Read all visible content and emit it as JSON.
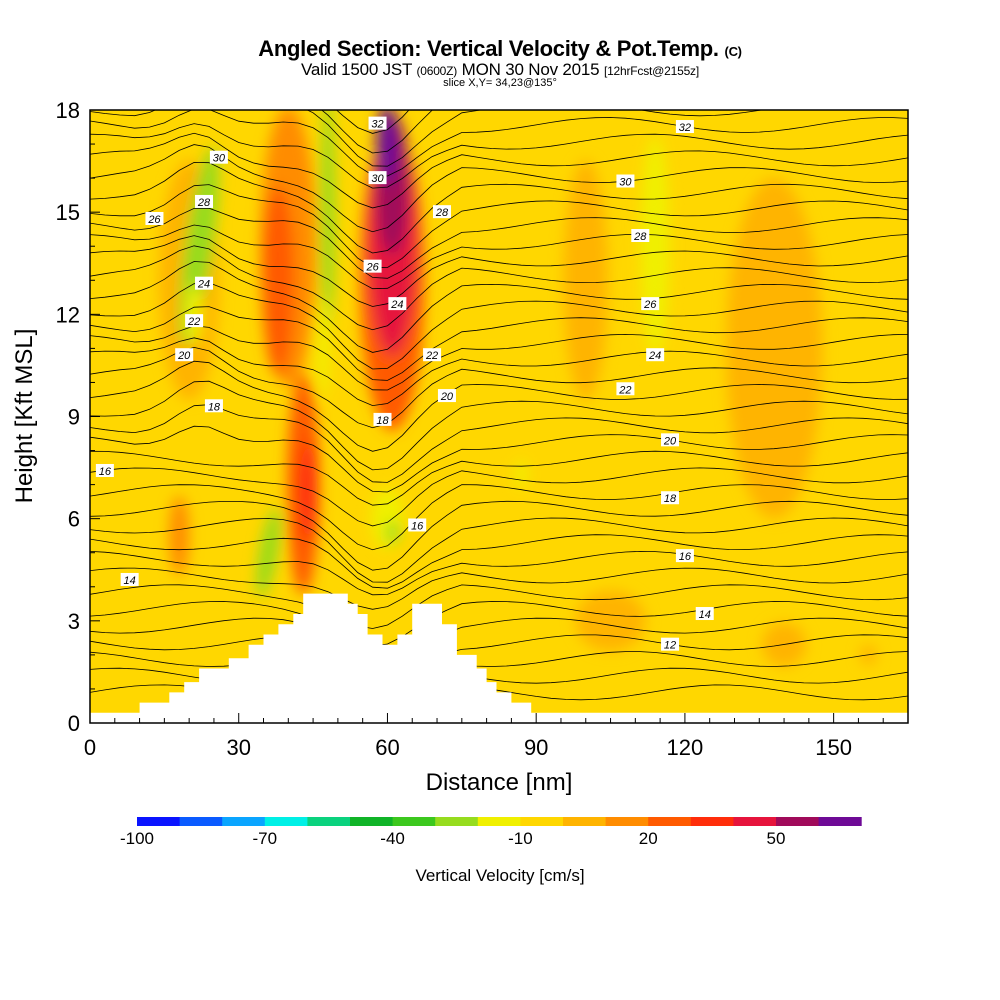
{
  "header": {
    "title_main": "Angled Section: Vertical Velocity & Pot.Temp.",
    "title_units": "(C)",
    "valid_a": "Valid 1500 JST",
    "valid_z": "(0600Z)",
    "valid_b": "MON 30 Nov 2015",
    "fcst": "[12hrFcst@2155z]",
    "slice": "slice X,Y= 34,23@135°"
  },
  "chart_data": {
    "type": "heatmap",
    "xlabel": "Distance [nm]",
    "ylabel": "Height [Kft MSL]",
    "xlim": [
      0,
      165
    ],
    "ylim": [
      0,
      18
    ],
    "xticks": [
      0,
      30,
      60,
      90,
      120,
      150
    ],
    "yticks": [
      0,
      3,
      6,
      9,
      12,
      15,
      18
    ],
    "terrain": [
      [
        0,
        0.3
      ],
      [
        10,
        0.3
      ],
      [
        10,
        0.6
      ],
      [
        16,
        0.6
      ],
      [
        16,
        0.9
      ],
      [
        19,
        0.9
      ],
      [
        19,
        1.2
      ],
      [
        22,
        1.2
      ],
      [
        22,
        1.6
      ],
      [
        28,
        1.6
      ],
      [
        28,
        1.9
      ],
      [
        32,
        1.9
      ],
      [
        32,
        2.3
      ],
      [
        35,
        2.3
      ],
      [
        35,
        2.6
      ],
      [
        38,
        2.6
      ],
      [
        38,
        2.9
      ],
      [
        41,
        2.9
      ],
      [
        41,
        3.2
      ],
      [
        43,
        3.2
      ],
      [
        43,
        3.8
      ],
      [
        52,
        3.8
      ],
      [
        52,
        3.5
      ],
      [
        54,
        3.5
      ],
      [
        54,
        3.2
      ],
      [
        56,
        3.2
      ],
      [
        56,
        2.6
      ],
      [
        59,
        2.6
      ],
      [
        59,
        2.3
      ],
      [
        62,
        2.3
      ],
      [
        62,
        2.6
      ],
      [
        65,
        2.6
      ],
      [
        65,
        3.5
      ],
      [
        71,
        3.5
      ],
      [
        71,
        2.9
      ],
      [
        74,
        2.9
      ],
      [
        74,
        2.0
      ],
      [
        78,
        2.0
      ],
      [
        78,
        1.6
      ],
      [
        80,
        1.6
      ],
      [
        80,
        1.2
      ],
      [
        82,
        1.2
      ],
      [
        82,
        0.9
      ],
      [
        85,
        0.9
      ],
      [
        85,
        0.6
      ],
      [
        89,
        0.6
      ],
      [
        89,
        0.3
      ],
      [
        165,
        0.3
      ]
    ],
    "theta_labels": [
      {
        "v": "32",
        "x": 58,
        "y": 17.6
      },
      {
        "v": "30",
        "x": 26,
        "y": 16.6
      },
      {
        "v": "30",
        "x": 58,
        "y": 16.0
      },
      {
        "v": "28",
        "x": 23,
        "y": 15.3
      },
      {
        "v": "26",
        "x": 13,
        "y": 14.8
      },
      {
        "v": "28",
        "x": 71,
        "y": 15.0
      },
      {
        "v": "26",
        "x": 57,
        "y": 13.4
      },
      {
        "v": "24",
        "x": 23,
        "y": 12.9
      },
      {
        "v": "24",
        "x": 62,
        "y": 12.3
      },
      {
        "v": "22",
        "x": 21,
        "y": 11.8
      },
      {
        "v": "22",
        "x": 69,
        "y": 10.8
      },
      {
        "v": "20",
        "x": 19,
        "y": 10.8
      },
      {
        "v": "20",
        "x": 72,
        "y": 9.6
      },
      {
        "v": "18",
        "x": 25,
        "y": 9.3
      },
      {
        "v": "18",
        "x": 59,
        "y": 8.9
      },
      {
        "v": "16",
        "x": 3,
        "y": 7.4
      },
      {
        "v": "16",
        "x": 66,
        "y": 5.8
      },
      {
        "v": "14",
        "x": 8,
        "y": 4.2
      },
      {
        "v": "32",
        "x": 120,
        "y": 17.5
      },
      {
        "v": "30",
        "x": 108,
        "y": 15.9
      },
      {
        "v": "28",
        "x": 111,
        "y": 14.3
      },
      {
        "v": "26",
        "x": 113,
        "y": 12.3
      },
      {
        "v": "24",
        "x": 114,
        "y": 10.8
      },
      {
        "v": "22",
        "x": 108,
        "y": 9.8
      },
      {
        "v": "20",
        "x": 117,
        "y": 8.3
      },
      {
        "v": "18",
        "x": 117,
        "y": 6.6
      },
      {
        "v": "16",
        "x": 120,
        "y": 4.9
      },
      {
        "v": "14",
        "x": 124,
        "y": 3.2
      },
      {
        "v": "12",
        "x": 117,
        "y": 2.3
      }
    ]
  },
  "colorbar": {
    "title": "Vertical Velocity [cm/s]",
    "labels": [
      {
        "v": "-100",
        "i": 0
      },
      {
        "v": "-70",
        "i": 3
      },
      {
        "v": "-40",
        "i": 6
      },
      {
        "v": "-10",
        "i": 9
      },
      {
        "v": "20",
        "i": 12
      },
      {
        "v": "50",
        "i": 15
      }
    ],
    "colors": [
      "#0a14ff",
      "#0a5aff",
      "#0aa5ff",
      "#00f0e6",
      "#0ad27e",
      "#10b428",
      "#3cc81e",
      "#96dc1e",
      "#f0f000",
      "#ffd700",
      "#ffb400",
      "#ff8c00",
      "#ff5a00",
      "#ff2d0a",
      "#e6143c",
      "#a00a5a",
      "#6e0a96"
    ]
  }
}
